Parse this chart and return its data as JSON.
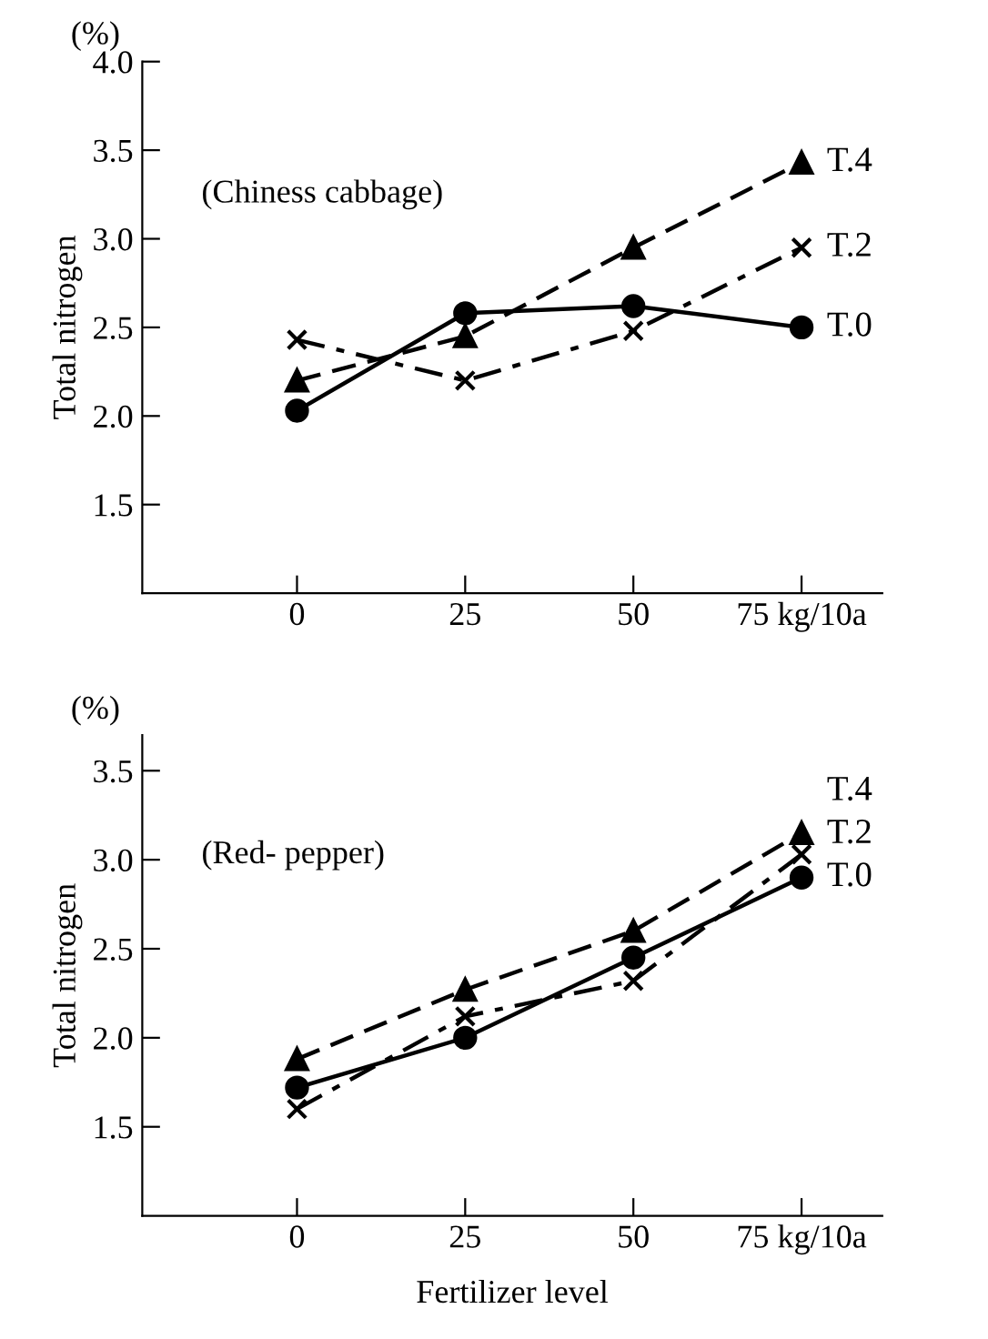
{
  "chart_data": [
    {
      "type": "line",
      "ylabel": "Total nitrogen",
      "annotations": [
        "(%)",
        "(Chiness cabbage)"
      ],
      "x": [
        0,
        25,
        50,
        75
      ],
      "xlim": [
        -23,
        87
      ],
      "xticks": [
        0,
        25,
        50,
        {
          "value": 75,
          "label": "75 kg/10a"
        }
      ],
      "ylim": [
        1.0,
        4.0
      ],
      "yticks": [
        1.5,
        {
          "value": 2,
          "label": "2.0"
        },
        2.5,
        {
          "value": 3,
          "label": "3.0"
        },
        3.5,
        {
          "value": 4,
          "label": "4.0"
        }
      ],
      "grid": false,
      "legend": false,
      "series": [
        {
          "name": "T.0",
          "color": "#000000",
          "marker": "circle",
          "line_style": "solid",
          "values": [
            2.03,
            2.58,
            2.62,
            2.5
          ]
        },
        {
          "name": "T.2",
          "color": "#000000",
          "marker": "cross",
          "line_style": "dashdot",
          "values": [
            2.43,
            2.2,
            2.48,
            2.95
          ]
        },
        {
          "name": "T.4",
          "color": "#000000",
          "marker": "triangle",
          "line_style": "dashed",
          "values": [
            2.2,
            2.45,
            2.95,
            3.43
          ]
        }
      ]
    },
    {
      "type": "line",
      "ylabel": "Total nitrogen",
      "xlabel": "Fertilizer level",
      "annotations": [
        "(%)",
        "(Red- pepper)"
      ],
      "x": [
        0,
        25,
        50,
        75
      ],
      "xlim": [
        -23,
        87
      ],
      "xticks": [
        0,
        25,
        50,
        {
          "value": 75,
          "label": "75 kg/10a"
        }
      ],
      "ylim": [
        1.0,
        3.7
      ],
      "yticks": [
        1.5,
        {
          "value": 2,
          "label": "2.0"
        },
        2.5,
        {
          "value": 3,
          "label": "3.0"
        },
        3.5
      ],
      "grid": false,
      "legend": false,
      "series": [
        {
          "name": "T.0",
          "color": "#000000",
          "marker": "circle",
          "line_style": "solid",
          "values": [
            1.72,
            2.0,
            2.45,
            2.9
          ]
        },
        {
          "name": "T.2",
          "color": "#000000",
          "marker": "cross",
          "line_style": "dashdot",
          "values": [
            1.6,
            2.12,
            2.32,
            3.03
          ]
        },
        {
          "name": "T.4",
          "color": "#000000",
          "marker": "triangle",
          "line_style": "dashed",
          "values": [
            1.88,
            2.27,
            2.6,
            3.15
          ]
        }
      ]
    }
  ]
}
